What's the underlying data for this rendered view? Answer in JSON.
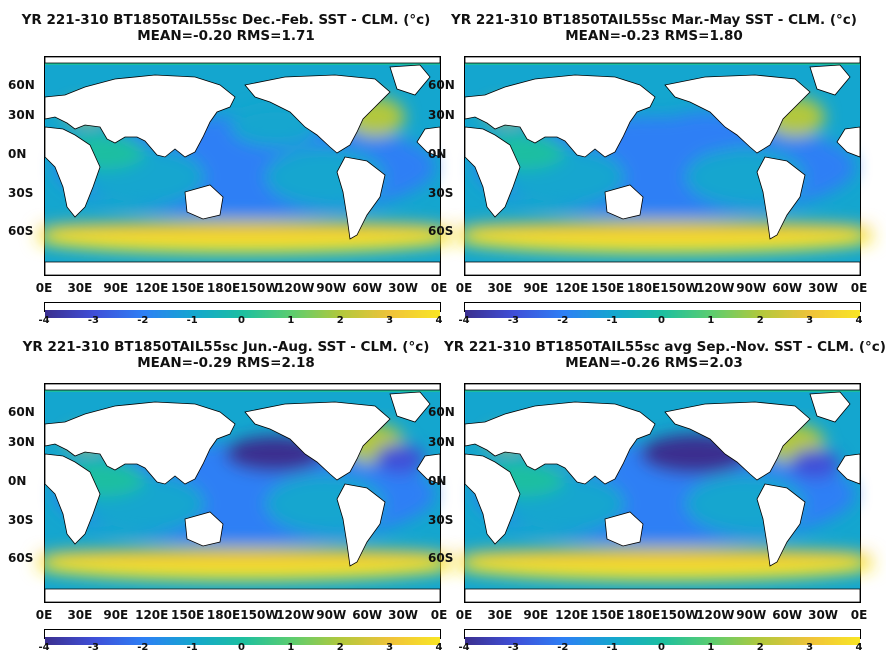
{
  "colormap": [
    "#3b2f8f",
    "#3f4fd8",
    "#2d7ff5",
    "#14a6cf",
    "#1cbfa0",
    "#5ccd6f",
    "#b3c83c",
    "#f0c33a",
    "#f9e624"
  ],
  "land_color": "#ffffff",
  "lat_labels": [
    "60N",
    "30N",
    "0N",
    "30S",
    "60S"
  ],
  "lon_labels": [
    "0E",
    "30E",
    "90E",
    "120E",
    "150E",
    "180E",
    "150W",
    "120W",
    "90W",
    "60W",
    "30W",
    "0E"
  ],
  "colorbar_ticks": [
    "-4",
    "-3",
    "-2",
    "-1",
    "0",
    "1",
    "2",
    "3",
    "4"
  ],
  "panels": [
    {
      "title": "YR 221-310 BT1850TAIL55sc  Dec.-Feb. SST - CLM. (°c)",
      "stats": "MEAN=-0.20   RMS=1.71",
      "mean": -0.2,
      "rms": 1.71
    },
    {
      "title": "YR 221-310 BT1850TAIL55sc  Mar.-May SST - CLM. (°c)",
      "stats": "MEAN=-0.23   RMS=1.80",
      "mean": -0.23,
      "rms": 1.8
    },
    {
      "title": "YR 221-310 BT1850TAIL55sc  Jun.-Aug. SST - CLM. (°c)",
      "stats": "MEAN=-0.29   RMS=2.18",
      "mean": -0.29,
      "rms": 2.18
    },
    {
      "title": "YR 221-310 BT1850TAIL55sc  avg Sep.-Nov. SST - CLM. (°c)",
      "stats": "MEAN=-0.26   RMS=2.03",
      "mean": -0.26,
      "rms": 2.03
    }
  ]
}
